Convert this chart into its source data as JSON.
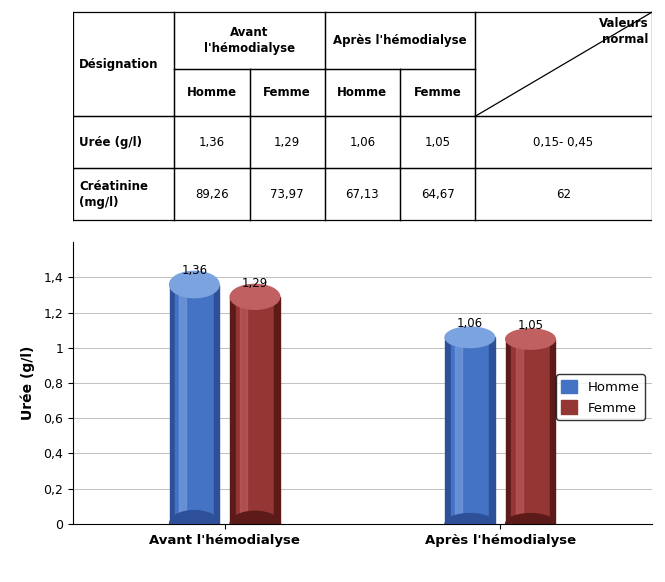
{
  "categories": [
    "Avant l'hémodialyse",
    "Après l'hémodialyse"
  ],
  "homme_values": [
    1.36,
    1.06
  ],
  "femme_values": [
    1.29,
    1.05
  ],
  "homme_color_main": "#4472C4",
  "homme_color_dark": "#2D5099",
  "homme_color_light": "#7BA3E0",
  "femme_color_main": "#943634",
  "femme_color_dark": "#5C1A19",
  "femme_color_light": "#C06060",
  "ylabel": "Urée (g/l)",
  "ylim": [
    0,
    1.6
  ],
  "yticks": [
    0,
    0.2,
    0.4,
    0.6,
    0.8,
    1.0,
    1.2,
    1.4
  ],
  "ytick_labels": [
    "0",
    "0,2",
    "0,4",
    "0,6",
    "0,8",
    "1",
    "1,2",
    "1,4"
  ],
  "legend_homme": "Homme",
  "legend_femme": "Femme",
  "bar_width": 0.18,
  "background_color": "#FFFFFF",
  "grid_color": "#C0C0C0",
  "table_data": [
    [
      "Désignation",
      "Avant\nl'hémodialyse",
      "",
      "Après l'hémodialyse",
      "",
      "Valeurs\nnormal"
    ],
    [
      "",
      "Homme",
      "Femme",
      "Homme",
      "Femme",
      ""
    ],
    [
      "Urée (g/l)",
      "1,36",
      "1,29",
      "1,06",
      "1,05",
      "0,15- 0,45"
    ],
    [
      "Créatinine\n(mg/l)",
      "89,26",
      "73,97",
      "67,13",
      "64,67",
      "62"
    ]
  ]
}
